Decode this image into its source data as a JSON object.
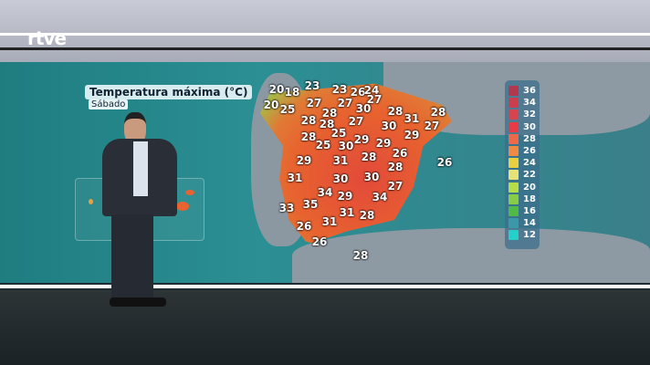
{
  "broadcaster": "rtve",
  "map": {
    "title": "Temperatura máxima (°C)",
    "day": "Sábado",
    "temperatures": [
      "20",
      "18",
      "23",
      "23",
      "26",
      "24",
      "20",
      "25",
      "27",
      "27",
      "27",
      "30",
      "28",
      "28",
      "31",
      "28",
      "28",
      "28",
      "27",
      "30",
      "27",
      "28",
      "25",
      "29",
      "29",
      "29",
      "25",
      "30",
      "26",
      "29",
      "31",
      "28",
      "28",
      "31",
      "30",
      "30",
      "27",
      "34",
      "29",
      "34",
      "33",
      "35",
      "31",
      "28",
      "26",
      "31",
      "26",
      "28",
      "26"
    ]
  },
  "legend": {
    "values": [
      "36",
      "34",
      "32",
      "30",
      "28",
      "26",
      "24",
      "22",
      "20",
      "18",
      "16",
      "14",
      "12"
    ],
    "colors": [
      "#b0384f",
      "#c8404f",
      "#d64450",
      "#e63c45",
      "#ec6a4a",
      "#ef8a45",
      "#e8d040",
      "#e6e27a",
      "#b6dc4a",
      "#86cc46",
      "#4fba48",
      "#3b98a8",
      "#25d0c8"
    ]
  }
}
